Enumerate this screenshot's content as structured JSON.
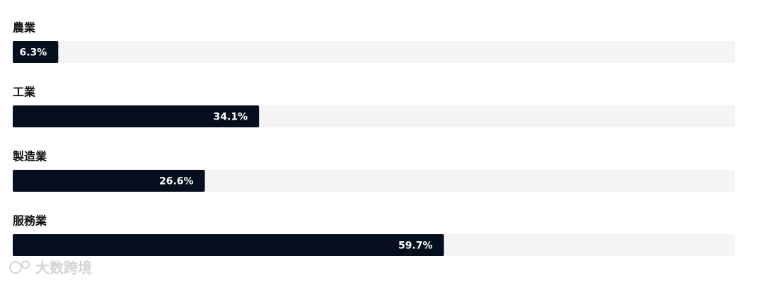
{
  "chart_data": {
    "type": "bar",
    "orientation": "horizontal",
    "categories": [
      "農業",
      "工業",
      "製造業",
      "服務業"
    ],
    "values": [
      6.3,
      34.1,
      26.6,
      59.7
    ],
    "value_labels": [
      "6.3%",
      "34.1%",
      "26.6%",
      "59.7%"
    ],
    "color": "#050f1e",
    "track_color": "#f4f4f4",
    "xlim": [
      0,
      100
    ]
  },
  "watermark": "大数跨境"
}
